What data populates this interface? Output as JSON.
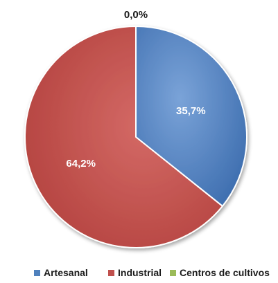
{
  "chart_data": {
    "type": "pie",
    "slices": [
      {
        "label": "Artesanal",
        "value": 35.7,
        "value_label": "35,7%",
        "color": "#4f81bd"
      },
      {
        "label": "Industrial",
        "value": 64.2,
        "value_label": "64,2%",
        "color": "#c0504d"
      },
      {
        "label": "Centros de cultivos",
        "value": 0.0,
        "value_label": "0,0%",
        "color": "#9bbb59"
      }
    ],
    "legend_position": "bottom",
    "start": "top",
    "direction": "clockwise",
    "style": "3d-shaded"
  }
}
